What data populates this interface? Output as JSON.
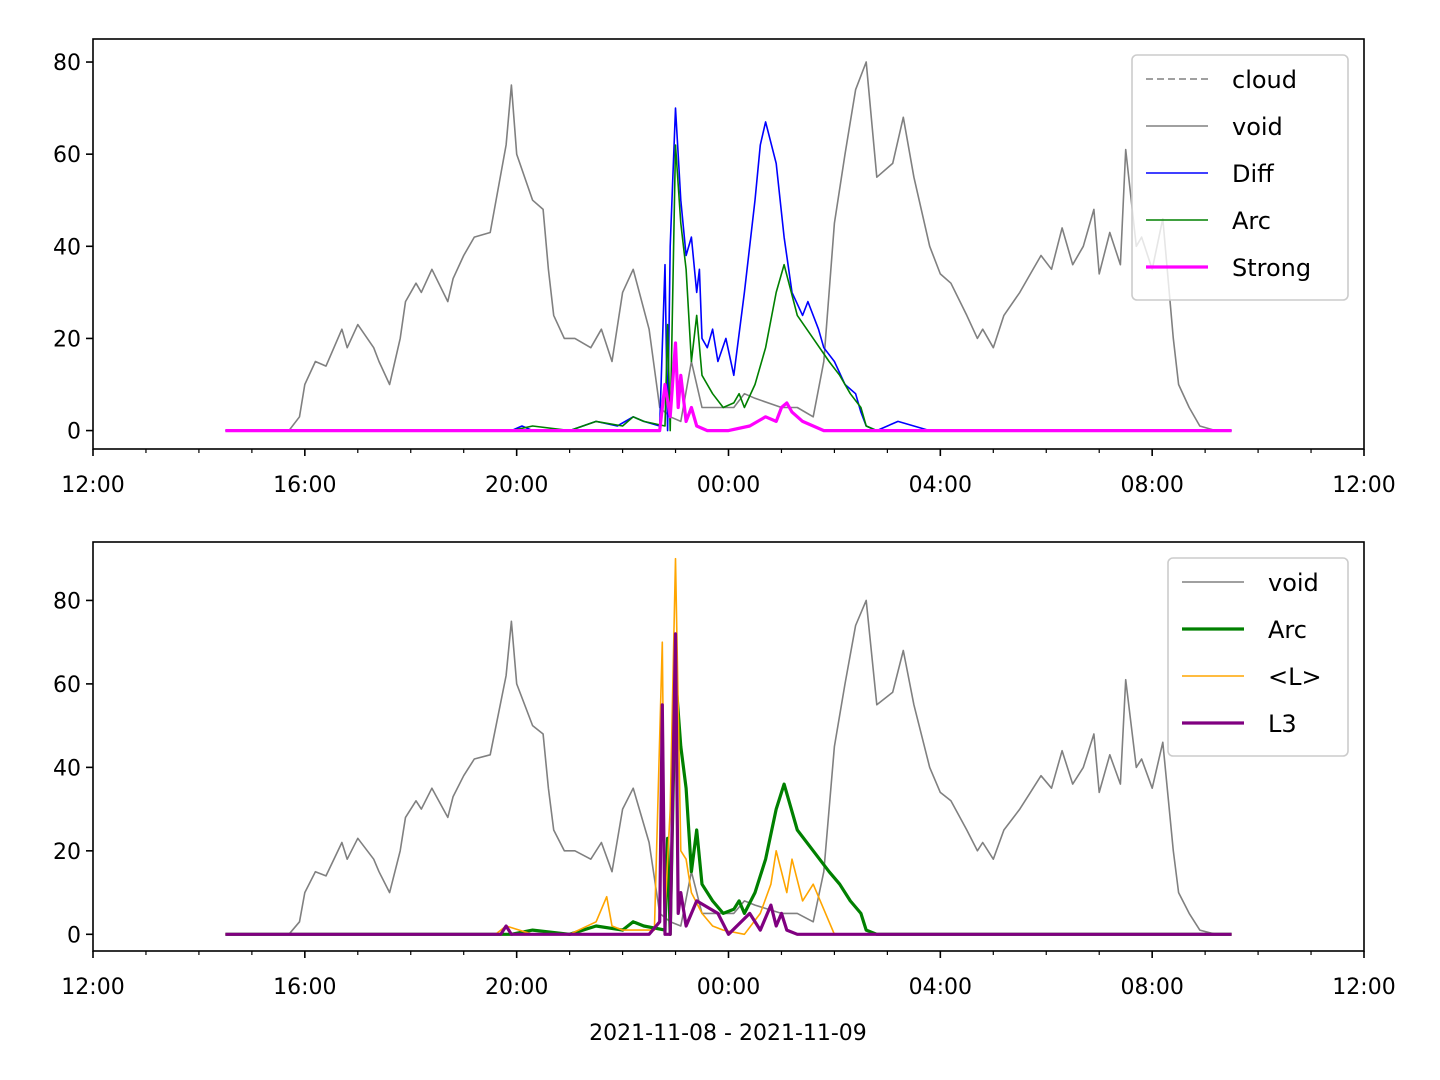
{
  "chart_data": [
    {
      "type": "line",
      "x_unit": "hours since 2021-11-08 12:00",
      "xlim": [
        0,
        24
      ],
      "ylim": [
        -4,
        85
      ],
      "xticks": [
        0,
        4,
        8,
        12,
        16,
        20,
        24
      ],
      "xtick_labels": [
        "12:00",
        "16:00",
        "20:00",
        "00:00",
        "04:00",
        "08:00",
        "12:00"
      ],
      "yticks": [
        0,
        20,
        40,
        60,
        80
      ],
      "ytick_labels": [
        "0",
        "20",
        "40",
        "60",
        "80"
      ],
      "grid": false,
      "legend_position": "top-right",
      "series": [
        {
          "name": "cloud",
          "color": "#808080",
          "dash": true,
          "width": 1.6,
          "x": [],
          "y": []
        },
        {
          "name": "void",
          "color": "#808080",
          "width": 1.6,
          "x": [
            2.5,
            3.7,
            3.9,
            4.0,
            4.2,
            4.4,
            4.7,
            4.8,
            5.0,
            5.3,
            5.4,
            5.6,
            5.8,
            5.9,
            6.1,
            6.2,
            6.4,
            6.7,
            6.8,
            7.0,
            7.2,
            7.5,
            7.8,
            7.9,
            8.0,
            8.3,
            8.5,
            8.6,
            8.7,
            8.9,
            9.1,
            9.4,
            9.6,
            9.8,
            10.0,
            10.2,
            10.5,
            10.7,
            10.9,
            11.1,
            11.3,
            11.5,
            11.8,
            12.1,
            12.3,
            12.5,
            13.0,
            13.3,
            13.6,
            13.8,
            14.0,
            14.2,
            14.4,
            14.6,
            14.8,
            15.1,
            15.3,
            15.5,
            15.8,
            16.0,
            16.2,
            16.5,
            16.7,
            16.8,
            17.0,
            17.2,
            17.5,
            17.7,
            17.9,
            18.1,
            18.3,
            18.5,
            18.7,
            18.9,
            19.0,
            19.2,
            19.4,
            19.5,
            19.7,
            19.8,
            20.0,
            20.2,
            20.4,
            20.5,
            20.7,
            20.9,
            21.2,
            21.5
          ],
          "y": [
            0,
            0,
            3,
            10,
            15,
            14,
            22,
            18,
            23,
            18,
            15,
            10,
            20,
            28,
            32,
            30,
            35,
            28,
            33,
            38,
            42,
            43,
            62,
            75,
            60,
            50,
            48,
            35,
            25,
            20,
            20,
            18,
            22,
            15,
            30,
            35,
            22,
            5,
            3,
            2,
            15,
            5,
            5,
            5,
            8,
            7,
            5,
            5,
            3,
            15,
            45,
            60,
            74,
            80,
            55,
            58,
            68,
            55,
            40,
            34,
            32,
            25,
            20,
            22,
            18,
            25,
            30,
            34,
            38,
            35,
            44,
            36,
            40,
            48,
            34,
            43,
            36,
            61,
            40,
            42,
            35,
            46,
            20,
            10,
            5,
            1,
            0,
            0
          ]
        },
        {
          "name": "Diff",
          "color": "#0000ff",
          "width": 1.6,
          "x": [
            2.5,
            7.9,
            8.1,
            8.3,
            9.0,
            9.5,
            9.9,
            10.2,
            10.4,
            10.7,
            10.8,
            10.85,
            10.9,
            11.0,
            11.1,
            11.2,
            11.3,
            11.4,
            11.45,
            11.5,
            11.6,
            11.7,
            11.8,
            11.95,
            12.1,
            12.3,
            12.5,
            12.6,
            12.7,
            12.9,
            13.05,
            13.2,
            13.4,
            13.5,
            13.7,
            13.8,
            14.0,
            14.2,
            14.4,
            14.5,
            14.6,
            14.8,
            15.2,
            15.8,
            21.5
          ],
          "y": [
            0,
            0,
            1,
            0,
            0,
            2,
            1,
            3,
            2,
            1,
            36,
            0,
            40,
            70,
            50,
            38,
            42,
            30,
            35,
            20,
            18,
            22,
            15,
            20,
            12,
            30,
            50,
            62,
            67,
            58,
            42,
            30,
            25,
            28,
            22,
            18,
            15,
            10,
            8,
            4,
            1,
            0,
            2,
            0,
            0
          ]
        },
        {
          "name": "Arc",
          "color": "#008000",
          "width": 1.6,
          "x": [
            2.5,
            7.9,
            8.3,
            9.0,
            9.5,
            10.0,
            10.2,
            10.4,
            10.8,
            10.85,
            10.9,
            11.0,
            11.1,
            11.2,
            11.3,
            11.4,
            11.5,
            11.7,
            11.9,
            12.1,
            12.2,
            12.3,
            12.5,
            12.7,
            12.9,
            13.05,
            13.3,
            13.6,
            13.9,
            14.1,
            14.3,
            14.5,
            14.6,
            14.8,
            21.5
          ],
          "y": [
            0,
            0,
            1,
            0,
            2,
            1,
            3,
            2,
            1,
            23,
            0,
            62,
            45,
            35,
            15,
            25,
            12,
            8,
            5,
            6,
            8,
            5,
            10,
            18,
            30,
            36,
            25,
            20,
            15,
            12,
            8,
            5,
            1,
            0,
            0
          ]
        },
        {
          "name": "Strong",
          "color": "#ff00ff",
          "width": 3.2,
          "x": [
            2.5,
            10.7,
            10.8,
            10.9,
            11.0,
            11.05,
            11.1,
            11.2,
            11.3,
            11.4,
            11.6,
            12.0,
            12.4,
            12.7,
            12.9,
            13.0,
            13.1,
            13.2,
            13.4,
            13.6,
            13.8,
            21.5
          ],
          "y": [
            0,
            0,
            10,
            3,
            19,
            5,
            12,
            2,
            5,
            1,
            0,
            0,
            1,
            3,
            2,
            5,
            6,
            4,
            2,
            1,
            0,
            0
          ]
        }
      ]
    },
    {
      "type": "line",
      "x_unit": "hours since 2021-11-08 12:00",
      "xlim": [
        0,
        24
      ],
      "ylim": [
        -4,
        94
      ],
      "xticks": [
        0,
        4,
        8,
        12,
        16,
        20,
        24
      ],
      "xtick_labels": [
        "12:00",
        "16:00",
        "20:00",
        "00:00",
        "04:00",
        "08:00",
        "12:00"
      ],
      "yticks": [
        0,
        20,
        40,
        60,
        80
      ],
      "ytick_labels": [
        "0",
        "20",
        "40",
        "60",
        "80"
      ],
      "xlabel": "2021-11-08 - 2021-11-09",
      "grid": false,
      "legend_position": "top-right",
      "series": [
        {
          "name": "void",
          "color": "#808080",
          "width": 1.6,
          "x": [
            2.5,
            3.7,
            3.9,
            4.0,
            4.2,
            4.4,
            4.7,
            4.8,
            5.0,
            5.3,
            5.4,
            5.6,
            5.8,
            5.9,
            6.1,
            6.2,
            6.4,
            6.7,
            6.8,
            7.0,
            7.2,
            7.5,
            7.8,
            7.9,
            8.0,
            8.3,
            8.5,
            8.6,
            8.7,
            8.9,
            9.1,
            9.4,
            9.6,
            9.8,
            10.0,
            10.2,
            10.5,
            10.7,
            10.9,
            11.1,
            11.3,
            11.5,
            11.8,
            12.1,
            12.3,
            12.5,
            13.0,
            13.3,
            13.6,
            13.8,
            14.0,
            14.2,
            14.4,
            14.6,
            14.8,
            15.1,
            15.3,
            15.5,
            15.8,
            16.0,
            16.2,
            16.5,
            16.7,
            16.8,
            17.0,
            17.2,
            17.5,
            17.7,
            17.9,
            18.1,
            18.3,
            18.5,
            18.7,
            18.9,
            19.0,
            19.2,
            19.4,
            19.5,
            19.7,
            19.8,
            20.0,
            20.2,
            20.4,
            20.5,
            20.7,
            20.9,
            21.2,
            21.5
          ],
          "y": [
            0,
            0,
            3,
            10,
            15,
            14,
            22,
            18,
            23,
            18,
            15,
            10,
            20,
            28,
            32,
            30,
            35,
            28,
            33,
            38,
            42,
            43,
            62,
            75,
            60,
            50,
            48,
            35,
            25,
            20,
            20,
            18,
            22,
            15,
            30,
            35,
            22,
            5,
            3,
            2,
            15,
            5,
            5,
            5,
            8,
            7,
            5,
            5,
            3,
            15,
            45,
            60,
            74,
            80,
            55,
            58,
            68,
            55,
            40,
            34,
            32,
            25,
            20,
            22,
            18,
            25,
            30,
            34,
            38,
            35,
            44,
            36,
            40,
            48,
            34,
            43,
            36,
            61,
            40,
            42,
            35,
            46,
            20,
            10,
            5,
            1,
            0,
            0
          ]
        },
        {
          "name": "Arc",
          "color": "#008000",
          "width": 3.2,
          "x": [
            2.5,
            7.9,
            8.3,
            9.0,
            9.5,
            10.0,
            10.2,
            10.4,
            10.8,
            10.85,
            10.9,
            11.0,
            11.1,
            11.2,
            11.3,
            11.4,
            11.5,
            11.7,
            11.9,
            12.1,
            12.2,
            12.3,
            12.5,
            12.7,
            12.9,
            13.05,
            13.3,
            13.6,
            13.9,
            14.1,
            14.3,
            14.5,
            14.6,
            14.8,
            21.5
          ],
          "y": [
            0,
            0,
            1,
            0,
            2,
            1,
            3,
            2,
            1,
            23,
            0,
            62,
            45,
            35,
            15,
            25,
            12,
            8,
            5,
            6,
            8,
            5,
            10,
            18,
            30,
            36,
            25,
            20,
            15,
            12,
            8,
            5,
            1,
            0,
            0
          ]
        },
        {
          "name": "<L>",
          "color": "#ffa500",
          "width": 1.6,
          "x": [
            2.5,
            7.6,
            7.8,
            8.3,
            9.0,
            9.5,
            9.7,
            9.8,
            10.0,
            10.6,
            10.75,
            10.8,
            10.9,
            11.0,
            11.1,
            11.2,
            11.3,
            11.5,
            11.7,
            11.9,
            12.3,
            12.6,
            12.8,
            12.9,
            13.0,
            13.1,
            13.2,
            13.4,
            13.6,
            13.8,
            13.9,
            14.0,
            21.5
          ],
          "y": [
            0,
            0,
            2,
            0,
            0,
            3,
            9,
            2,
            1,
            1,
            70,
            5,
            30,
            90,
            20,
            18,
            10,
            5,
            2,
            1,
            0,
            5,
            12,
            20,
            15,
            10,
            18,
            8,
            12,
            6,
            3,
            0,
            0
          ]
        },
        {
          "name": "L3",
          "color": "#800080",
          "width": 3.2,
          "x": [
            2.5,
            7.7,
            7.8,
            7.9,
            10.5,
            10.7,
            10.75,
            10.8,
            10.9,
            11.0,
            11.05,
            11.1,
            11.2,
            11.4,
            11.8,
            12.0,
            12.4,
            12.6,
            12.8,
            12.9,
            13.0,
            13.1,
            13.3,
            21.5
          ],
          "y": [
            0,
            0,
            2,
            0,
            0,
            3,
            55,
            0,
            0,
            72,
            5,
            10,
            2,
            8,
            5,
            0,
            5,
            1,
            7,
            2,
            5,
            1,
            0,
            0
          ]
        }
      ]
    }
  ]
}
